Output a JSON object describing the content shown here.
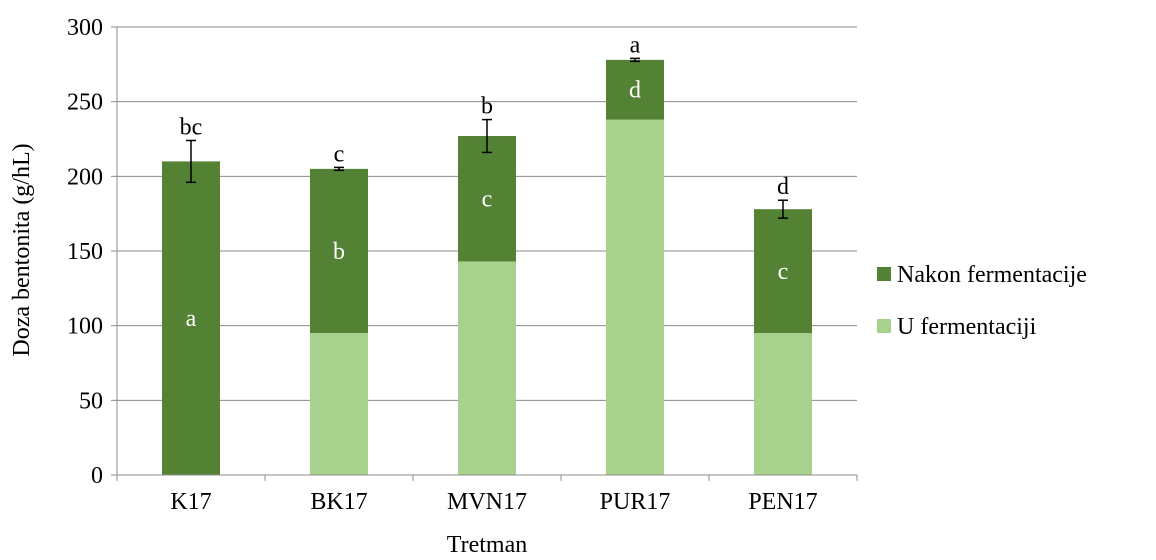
{
  "chart_data": {
    "type": "bar",
    "stacked": true,
    "xlabel": "Tretman",
    "ylabel": "Doza bentonita (g/hL)",
    "ylim": [
      0,
      300
    ],
    "yticks": [
      0,
      50,
      100,
      150,
      200,
      250,
      300
    ],
    "grid": true,
    "legend_position": "right",
    "categories": [
      "K17",
      "BK17",
      "MVN17",
      "PUR17",
      "PEN17"
    ],
    "series": [
      {
        "name": "U fermentaciji",
        "color": "#a9d18e",
        "values": [
          0,
          95,
          143,
          238,
          95
        ],
        "labels": [
          "",
          "",
          "",
          "",
          ""
        ]
      },
      {
        "name": "Nakon fermentacije",
        "color": "#548235",
        "values": [
          210,
          110,
          84,
          40,
          83
        ],
        "labels": [
          "a",
          "b",
          "c",
          "d",
          "c"
        ]
      }
    ],
    "error_bars": [
      14,
      1,
      11,
      1,
      6
    ],
    "significance_labels": [
      "bc",
      "c",
      "b",
      "a",
      "d"
    ]
  }
}
